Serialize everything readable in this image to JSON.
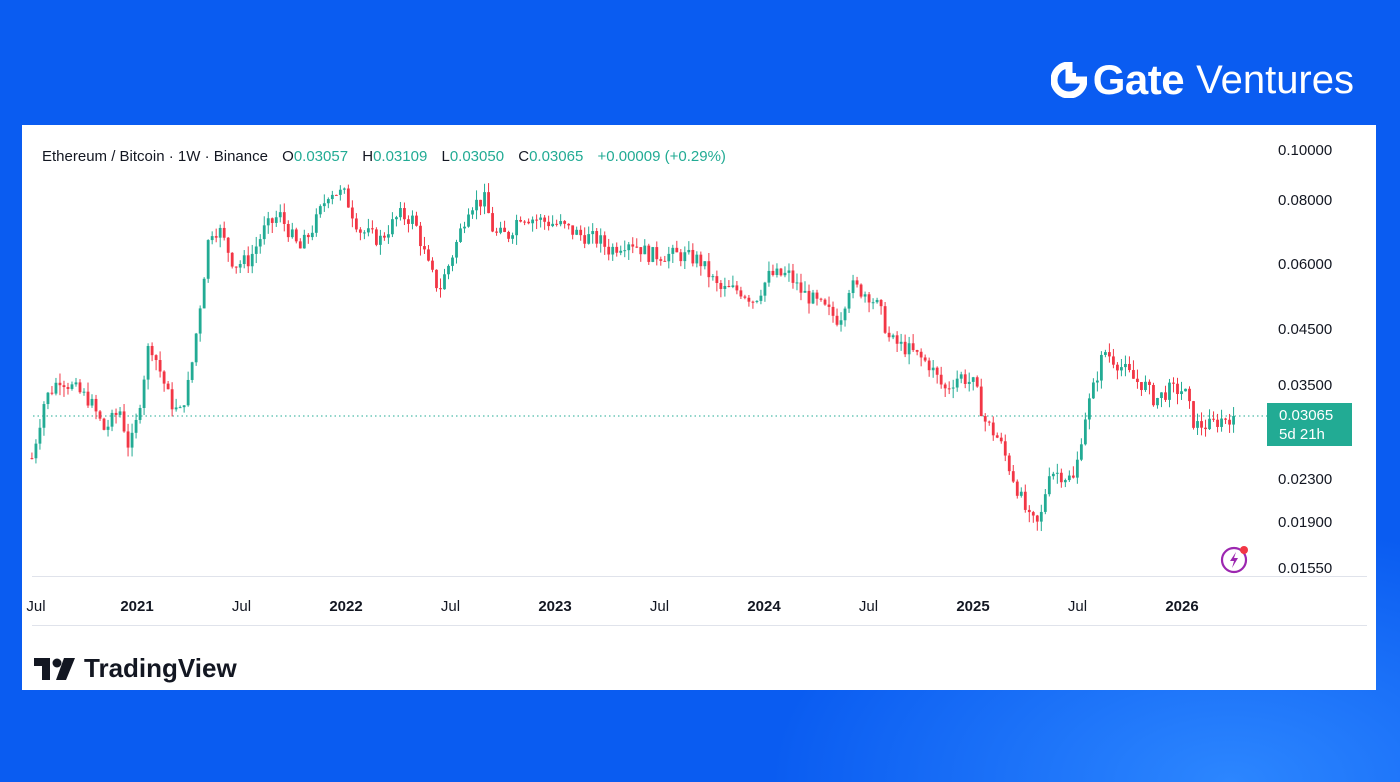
{
  "brand": {
    "name": "Gate",
    "suffix": "Ventures"
  },
  "footer": {
    "logo_text": "TradingView"
  },
  "legend": {
    "symbol": "Ethereum / Bitcoin",
    "interval": "1W",
    "exchange": "Binance",
    "open_label": "O",
    "open": "0.03057",
    "high_label": "H",
    "high": "0.03109",
    "low_label": "L",
    "low": "0.03050",
    "close_label": "C",
    "close": "0.03065",
    "change": "+0.00009 (+0.29%)"
  },
  "last_price": {
    "value": "0.03065",
    "countdown": "5d 21h"
  },
  "colors": {
    "up": "#22ab94",
    "down": "#f23645",
    "background": "#0a5cf1"
  },
  "chart_data": {
    "type": "candlestick",
    "title": "Ethereum / Bitcoin · 1W · Binance",
    "y_scale": "log",
    "ylim": [
      0.0155,
      0.1
    ],
    "y_ticks": [
      "0.10000",
      "0.08000",
      "0.06000",
      "0.04500",
      "0.03500",
      "0.02300",
      "0.01900",
      "0.01550"
    ],
    "x_ticks": [
      "Jul",
      "2021",
      "Jul",
      "2022",
      "Jul",
      "2023",
      "Jul",
      "2024",
      "Jul",
      "2025",
      "Jul",
      "2026"
    ],
    "grid": false,
    "last_close": 0.03065,
    "approx_weekly_close_path": [
      [
        "2020-07-01",
        0.0254
      ],
      [
        "2020-07-23",
        0.0329
      ],
      [
        "2020-08-19",
        0.0363
      ],
      [
        "2020-10-10",
        0.0329
      ],
      [
        "2020-11-05",
        0.0288
      ],
      [
        "2020-12-02",
        0.0315
      ],
      [
        "2020-12-19",
        0.0263
      ],
      [
        "2021-01-01",
        0.0301
      ],
      [
        "2021-01-23",
        0.043
      ],
      [
        "2021-02-10",
        0.0376
      ],
      [
        "2021-02-27",
        0.0329
      ],
      [
        "2021-03-16",
        0.0308
      ],
      [
        "2021-04-03",
        0.036
      ],
      [
        "2021-04-20",
        0.0492
      ],
      [
        "2021-05-08",
        0.0703
      ],
      [
        "2021-05-25",
        0.0703
      ],
      [
        "2021-06-20",
        0.0601
      ],
      [
        "2021-07-16",
        0.0615
      ],
      [
        "2021-08-11",
        0.0703
      ],
      [
        "2021-09-07",
        0.0752
      ],
      [
        "2021-10-12",
        0.0643
      ],
      [
        "2021-11-07",
        0.0719
      ],
      [
        "2021-12-03",
        0.084
      ],
      [
        "2021-12-30",
        0.0822
      ],
      [
        "2022-01-25",
        0.0703
      ],
      [
        "2022-03-01",
        0.0672
      ],
      [
        "2022-04-04",
        0.0752
      ],
      [
        "2022-04-30",
        0.0735
      ],
      [
        "2022-05-27",
        0.0588
      ],
      [
        "2022-06-13",
        0.0538
      ],
      [
        "2022-07-09",
        0.0643
      ],
      [
        "2022-08-04",
        0.0786
      ],
      [
        "2022-08-31",
        0.0804
      ],
      [
        "2022-09-17",
        0.0688
      ],
      [
        "2022-10-13",
        0.0688
      ],
      [
        "2022-10-31",
        0.0752
      ],
      [
        "2022-12-05",
        0.0735
      ],
      [
        "2023-01-09",
        0.0719
      ],
      [
        "2023-02-13",
        0.0688
      ],
      [
        "2023-03-19",
        0.0672
      ],
      [
        "2023-04-06",
        0.0643
      ],
      [
        "2023-05-11",
        0.0672
      ],
      [
        "2023-06-15",
        0.0629
      ],
      [
        "2023-08-06",
        0.0629
      ],
      [
        "2023-09-10",
        0.0615
      ],
      [
        "2023-10-15",
        0.0538
      ],
      [
        "2023-11-19",
        0.0538
      ],
      [
        "2023-12-15",
        0.0514
      ],
      [
        "2024-01-11",
        0.0575
      ],
      [
        "2024-02-14",
        0.0575
      ],
      [
        "2024-03-03",
        0.0538
      ],
      [
        "2024-04-07",
        0.0503
      ],
      [
        "2024-05-12",
        0.047
      ],
      [
        "2024-05-30",
        0.055
      ],
      [
        "2024-07-04",
        0.0526
      ],
      [
        "2024-07-22",
        0.0492
      ],
      [
        "2024-08-08",
        0.043
      ],
      [
        "2024-09-12",
        0.0411
      ],
      [
        "2024-10-17",
        0.0385
      ],
      [
        "2024-11-12",
        0.0344
      ],
      [
        "2024-12-08",
        0.0368
      ],
      [
        "2025-01-04",
        0.0352
      ],
      [
        "2025-01-21",
        0.0301
      ],
      [
        "2025-02-16",
        0.0275
      ],
      [
        "2025-03-14",
        0.023
      ],
      [
        "2025-04-09",
        0.0193
      ],
      [
        "2025-04-27",
        0.0188
      ],
      [
        "2025-05-14",
        0.0241
      ],
      [
        "2025-06-09",
        0.0235
      ],
      [
        "2025-06-27",
        0.023
      ],
      [
        "2025-07-14",
        0.0301
      ],
      [
        "2025-08-01",
        0.0352
      ],
      [
        "2025-08-18",
        0.0411
      ],
      [
        "2025-09-14",
        0.0385
      ],
      [
        "2025-10-10",
        0.036
      ],
      [
        "2025-10-28",
        0.0352
      ],
      [
        "2025-11-14",
        0.0329
      ],
      [
        "2025-12-10",
        0.0344
      ],
      [
        "2026-01-05",
        0.0344
      ],
      [
        "2026-01-23",
        0.0294
      ],
      [
        "2026-02-19",
        0.0294
      ],
      [
        "2026-03-16",
        0.0304
      ],
      [
        "2026-04-03",
        0.03065
      ]
    ]
  }
}
